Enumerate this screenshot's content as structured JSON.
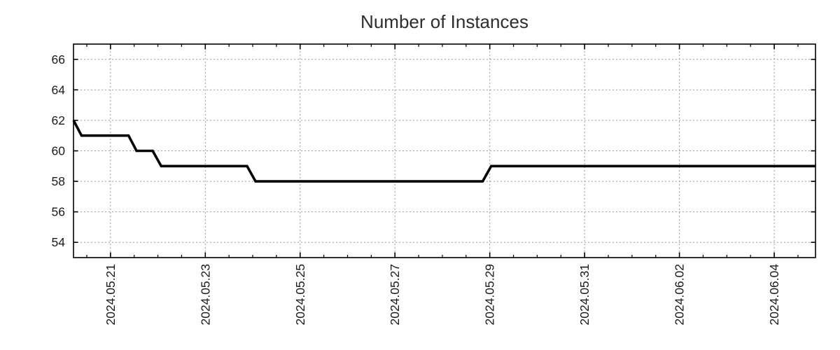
{
  "chart_data": {
    "type": "line",
    "style": "step-with-slanted-transitions",
    "title": "Number of Instances",
    "xlabel": "",
    "ylabel": "",
    "grid": true,
    "legend": false,
    "x_unit": "days from 2024-05-21 00:00",
    "xlim": [
      -0.78,
      14.87
    ],
    "ylim": [
      53,
      67
    ],
    "x_minor_step": 0.5,
    "x_ticks": [
      {
        "d": 0,
        "label": "2024.05.21"
      },
      {
        "d": 2,
        "label": "2024.05.23"
      },
      {
        "d": 4,
        "label": "2024.05.25"
      },
      {
        "d": 6,
        "label": "2024.05.27"
      },
      {
        "d": 8,
        "label": "2024.05.29"
      },
      {
        "d": 10,
        "label": "2024.05.31"
      },
      {
        "d": 12,
        "label": "2024.06.02"
      },
      {
        "d": 14,
        "label": "2024.06.04"
      }
    ],
    "y_ticks": [
      54,
      56,
      58,
      60,
      62,
      64,
      66
    ],
    "colors": {
      "line": "#000000",
      "grid": "#9b9b9b",
      "axis": "#000000",
      "tick_text": "#1a1a1a",
      "title_text": "#2e2e2e",
      "background": "#ffffff"
    },
    "series": [
      {
        "name": "instances",
        "color": "#000000",
        "line_width": 3.6,
        "points": [
          {
            "t": "2024-05-20 05:15",
            "d": -0.78,
            "y": 62
          },
          {
            "t": "2024-05-20 09:20",
            "d": -0.61,
            "y": 61
          },
          {
            "t": "2024-05-21 09:05",
            "d": 0.38,
            "y": 61
          },
          {
            "t": "2024-05-21 13:10",
            "d": 0.55,
            "y": 60
          },
          {
            "t": "2024-05-21 21:20",
            "d": 0.89,
            "y": 60
          },
          {
            "t": "2024-05-22 01:40",
            "d": 1.07,
            "y": 59
          },
          {
            "t": "2024-05-23 21:05",
            "d": 2.88,
            "y": 59
          },
          {
            "t": "2024-05-24 01:25",
            "d": 3.06,
            "y": 58
          },
          {
            "t": "2024-05-28 20:25",
            "d": 7.85,
            "y": 58
          },
          {
            "t": "2024-05-29 00:45",
            "d": 8.03,
            "y": 59
          },
          {
            "t": "2024-06-04 20:40",
            "d": 14.87,
            "y": 59
          }
        ]
      }
    ]
  }
}
